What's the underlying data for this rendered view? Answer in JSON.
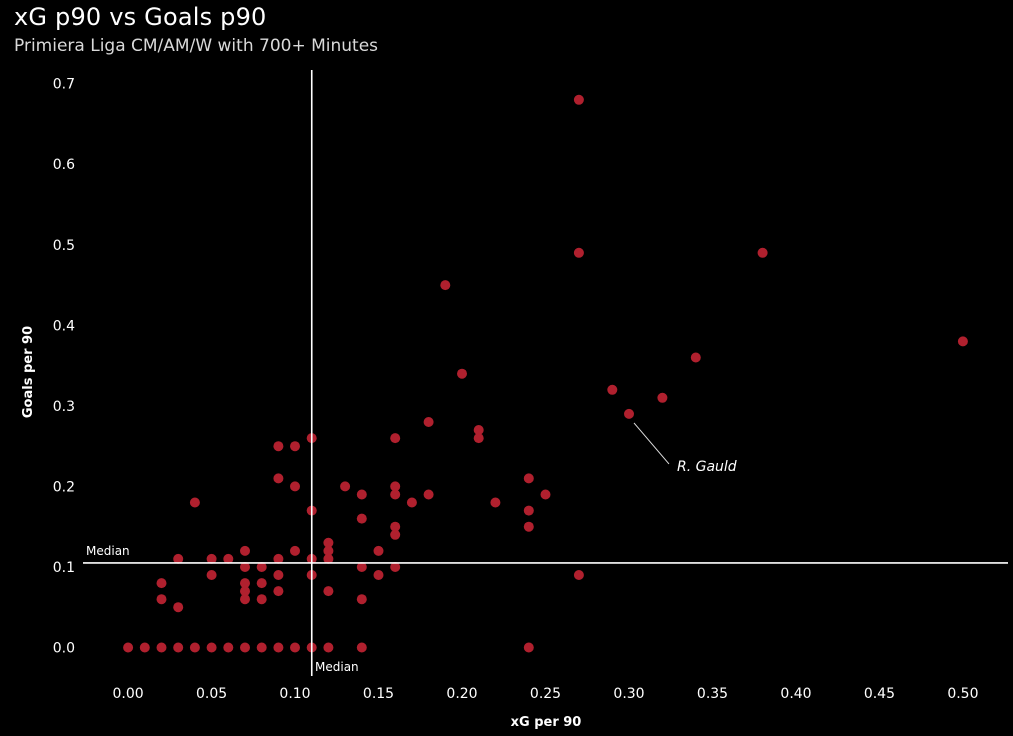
{
  "chart_data": {
    "type": "scatter",
    "title": "xG p90 vs Goals p90",
    "subtitle": "Primiera Liga CM/AM/W with 700+ Minutes",
    "xlabel": "xG per 90",
    "ylabel": "Goals per 90",
    "xlim": [
      -0.027,
      0.527
    ],
    "ylim": [
      -0.0155,
      0.717
    ],
    "x_ticks": [
      0.0,
      0.05,
      0.1,
      0.15,
      0.2,
      0.25,
      0.3,
      0.35,
      0.4,
      0.45,
      0.5
    ],
    "x_tick_labels": [
      "0.00",
      "0.05",
      "0.10",
      "0.15",
      "0.20",
      "0.25",
      "0.30",
      "0.35",
      "0.40",
      "0.45",
      "0.50"
    ],
    "y_ticks": [
      0.0,
      0.1,
      0.2,
      0.3,
      0.4,
      0.5,
      0.6,
      0.7
    ],
    "y_tick_labels": [
      "0.0",
      "0.1",
      "0.2",
      "0.3",
      "0.4",
      "0.5",
      "0.6",
      "0.7"
    ],
    "grid": false,
    "point_color": "#b0202e",
    "line_color": "#ffffff",
    "median_x": {
      "value": 0.11,
      "label": "Median"
    },
    "median_y": {
      "value": 0.105,
      "label": "Median"
    },
    "annotations": [
      {
        "text": "R. Gauld",
        "x": 0.3,
        "y": 0.29
      }
    ],
    "points": [
      [
        0.0,
        0.0
      ],
      [
        0.01,
        0.0
      ],
      [
        0.02,
        0.0
      ],
      [
        0.03,
        0.0
      ],
      [
        0.04,
        0.0
      ],
      [
        0.05,
        0.0
      ],
      [
        0.06,
        0.0
      ],
      [
        0.07,
        0.0
      ],
      [
        0.08,
        0.0
      ],
      [
        0.09,
        0.0
      ],
      [
        0.1,
        0.0
      ],
      [
        0.11,
        0.0
      ],
      [
        0.12,
        0.0
      ],
      [
        0.14,
        0.0
      ],
      [
        0.24,
        0.0
      ],
      [
        0.02,
        0.08
      ],
      [
        0.02,
        0.06
      ],
      [
        0.03,
        0.05
      ],
      [
        0.03,
        0.11
      ],
      [
        0.04,
        0.18
      ],
      [
        0.05,
        0.11
      ],
      [
        0.05,
        0.09
      ],
      [
        0.06,
        0.11
      ],
      [
        0.07,
        0.12
      ],
      [
        0.07,
        0.1
      ],
      [
        0.07,
        0.08
      ],
      [
        0.07,
        0.07
      ],
      [
        0.07,
        0.06
      ],
      [
        0.08,
        0.1
      ],
      [
        0.08,
        0.08
      ],
      [
        0.08,
        0.06
      ],
      [
        0.09,
        0.25
      ],
      [
        0.09,
        0.21
      ],
      [
        0.09,
        0.11
      ],
      [
        0.09,
        0.09
      ],
      [
        0.09,
        0.07
      ],
      [
        0.1,
        0.25
      ],
      [
        0.1,
        0.2
      ],
      [
        0.1,
        0.12
      ],
      [
        0.11,
        0.26
      ],
      [
        0.11,
        0.17
      ],
      [
        0.11,
        0.11
      ],
      [
        0.11,
        0.09
      ],
      [
        0.12,
        0.13
      ],
      [
        0.12,
        0.12
      ],
      [
        0.12,
        0.11
      ],
      [
        0.12,
        0.07
      ],
      [
        0.13,
        0.2
      ],
      [
        0.14,
        0.19
      ],
      [
        0.14,
        0.16
      ],
      [
        0.14,
        0.1
      ],
      [
        0.14,
        0.06
      ],
      [
        0.15,
        0.12
      ],
      [
        0.15,
        0.09
      ],
      [
        0.16,
        0.26
      ],
      [
        0.16,
        0.2
      ],
      [
        0.16,
        0.19
      ],
      [
        0.16,
        0.15
      ],
      [
        0.16,
        0.14
      ],
      [
        0.16,
        0.1
      ],
      [
        0.17,
        0.18
      ],
      [
        0.18,
        0.28
      ],
      [
        0.18,
        0.19
      ],
      [
        0.19,
        0.45
      ],
      [
        0.2,
        0.34
      ],
      [
        0.21,
        0.27
      ],
      [
        0.21,
        0.26
      ],
      [
        0.22,
        0.18
      ],
      [
        0.24,
        0.21
      ],
      [
        0.24,
        0.17
      ],
      [
        0.24,
        0.15
      ],
      [
        0.25,
        0.19
      ],
      [
        0.27,
        0.68
      ],
      [
        0.27,
        0.49
      ],
      [
        0.27,
        0.09
      ],
      [
        0.29,
        0.32
      ],
      [
        0.3,
        0.29
      ],
      [
        0.32,
        0.31
      ],
      [
        0.34,
        0.36
      ],
      [
        0.38,
        0.49
      ],
      [
        0.5,
        0.38
      ]
    ]
  }
}
